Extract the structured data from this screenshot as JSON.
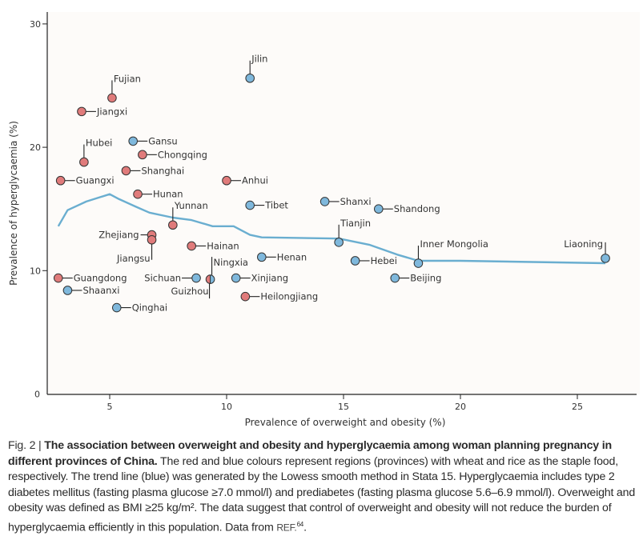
{
  "chart_data": {
    "type": "scatter",
    "title": "",
    "xlabel": "Prevalence of overweight and obesity (%)",
    "ylabel": "Prevalence of hyperglycaemia (%)",
    "xlim": [
      2.3,
      27
    ],
    "ylim": [
      0,
      31
    ],
    "xticks": [
      5,
      10,
      15,
      20,
      25
    ],
    "yticks": [
      0,
      10,
      20,
      30
    ],
    "grid": false,
    "legend": "none (colours explained in caption)",
    "colors": {
      "wheat": "#e07b7b",
      "rice": "#7fb8dc",
      "trend": "#6aaed0"
    },
    "points": [
      {
        "name": "Jilin",
        "x": 11.0,
        "y": 25.6,
        "group": "rice",
        "label_pos": "up"
      },
      {
        "name": "Fujian",
        "x": 5.1,
        "y": 24.0,
        "group": "wheat",
        "label_pos": "up"
      },
      {
        "name": "Jiangxi",
        "x": 3.8,
        "y": 22.9,
        "group": "wheat",
        "label_pos": "right"
      },
      {
        "name": "Gansu",
        "x": 6.0,
        "y": 20.5,
        "group": "rice",
        "label_pos": "right"
      },
      {
        "name": "Chongqing",
        "x": 6.4,
        "y": 19.4,
        "group": "wheat",
        "label_pos": "right"
      },
      {
        "name": "Hubei",
        "x": 3.9,
        "y": 18.8,
        "group": "wheat",
        "label_pos": "up"
      },
      {
        "name": "Shanghai",
        "x": 5.7,
        "y": 18.1,
        "group": "wheat",
        "label_pos": "right"
      },
      {
        "name": "Guangxi",
        "x": 2.9,
        "y": 17.3,
        "group": "wheat",
        "label_pos": "right"
      },
      {
        "name": "Anhui",
        "x": 10.0,
        "y": 17.3,
        "group": "wheat",
        "label_pos": "right"
      },
      {
        "name": "Hunan",
        "x": 6.2,
        "y": 16.2,
        "group": "wheat",
        "label_pos": "right"
      },
      {
        "name": "Shanxi",
        "x": 14.2,
        "y": 15.6,
        "group": "rice",
        "label_pos": "right"
      },
      {
        "name": "Tibet",
        "x": 11.0,
        "y": 15.3,
        "group": "rice",
        "label_pos": "right"
      },
      {
        "name": "Shandong",
        "x": 16.5,
        "y": 15.0,
        "group": "rice",
        "label_pos": "right"
      },
      {
        "name": "Yunnan",
        "x": 7.7,
        "y": 13.7,
        "group": "wheat",
        "label_pos": "up"
      },
      {
        "name": "Zhejiang",
        "x": 6.8,
        "y": 12.9,
        "group": "wheat",
        "label_pos": "left"
      },
      {
        "name": "Jiangsu",
        "x": 6.8,
        "y": 12.5,
        "group": "wheat",
        "label_pos": "down"
      },
      {
        "name": "Tianjin",
        "x": 14.8,
        "y": 12.3,
        "group": "rice",
        "label_pos": "up"
      },
      {
        "name": "Hainan",
        "x": 8.5,
        "y": 12.0,
        "group": "wheat",
        "label_pos": "right"
      },
      {
        "name": "Henan",
        "x": 11.5,
        "y": 11.1,
        "group": "rice",
        "label_pos": "right"
      },
      {
        "name": "Liaoning",
        "x": 26.2,
        "y": 11.0,
        "group": "rice",
        "label_pos": "up-left"
      },
      {
        "name": "Hebei",
        "x": 15.5,
        "y": 10.8,
        "group": "rice",
        "label_pos": "right"
      },
      {
        "name": "Inner Mongolia",
        "x": 18.2,
        "y": 10.6,
        "group": "rice",
        "label_pos": "up"
      },
      {
        "name": "Beijing",
        "x": 17.2,
        "y": 9.4,
        "group": "rice",
        "label_pos": "right"
      },
      {
        "name": "Guangdong",
        "x": 2.8,
        "y": 9.4,
        "group": "wheat",
        "label_pos": "right"
      },
      {
        "name": "Sichuan",
        "x": 8.7,
        "y": 9.4,
        "group": "rice",
        "label_pos": "left"
      },
      {
        "name": "Guizhou",
        "x": 9.3,
        "y": 9.3,
        "group": "wheat",
        "label_pos": "down-left",
        "half": "left"
      },
      {
        "name": "Ningxia",
        "x": 9.3,
        "y": 9.3,
        "group": "rice",
        "label_pos": "up",
        "half": "right"
      },
      {
        "name": "Xinjiang",
        "x": 10.4,
        "y": 9.4,
        "group": "rice",
        "label_pos": "right"
      },
      {
        "name": "Shaanxi",
        "x": 3.2,
        "y": 8.4,
        "group": "rice",
        "label_pos": "right"
      },
      {
        "name": "Heilongjiang",
        "x": 10.8,
        "y": 7.9,
        "group": "wheat",
        "label_pos": "right"
      },
      {
        "name": "Qinghai",
        "x": 5.3,
        "y": 7.0,
        "group": "rice",
        "label_pos": "right"
      }
    ],
    "trend_line": {
      "name": "Lowess smooth",
      "x": [
        2.8,
        3.2,
        4.0,
        5.0,
        5.4,
        6.1,
        6.7,
        7.7,
        8.5,
        9.4,
        10.3,
        11.0,
        11.5,
        14.8,
        16.1,
        17.3,
        18.2,
        20.0,
        26.2
      ],
      "y": [
        13.6,
        14.9,
        15.6,
        16.2,
        15.8,
        15.2,
        14.7,
        14.3,
        14.1,
        13.6,
        13.6,
        12.9,
        12.7,
        12.6,
        12.1,
        11.3,
        10.8,
        10.8,
        10.6
      ]
    }
  },
  "caption": {
    "fig_label": "Fig. 2",
    "separator": "|",
    "bold_title": "The association between overweight and obesity and hyperglycaemia among woman planning pregnancy in different provinces of China.",
    "body": "The red and blue colours represent regions (provinces) with wheat and rice as the staple food, respectively. The trend line (blue) was generated by the Lowess smooth method in Stata 15. Hyperglycaemia includes type 2 diabetes mellitus (fasting plasma glucose ≥7.0 mmol/l) and prediabetes (fasting plasma glucose 5.6–6.9 mmol/l). Overweight and obesity was defined as BMI ≥25 kg/m². The data suggest that control of overweight and obesity will not reduce the burden of hyperglycaemia efficiently in this population. Data from",
    "ref": "REF.",
    "ref_num": "64",
    "end": "."
  }
}
